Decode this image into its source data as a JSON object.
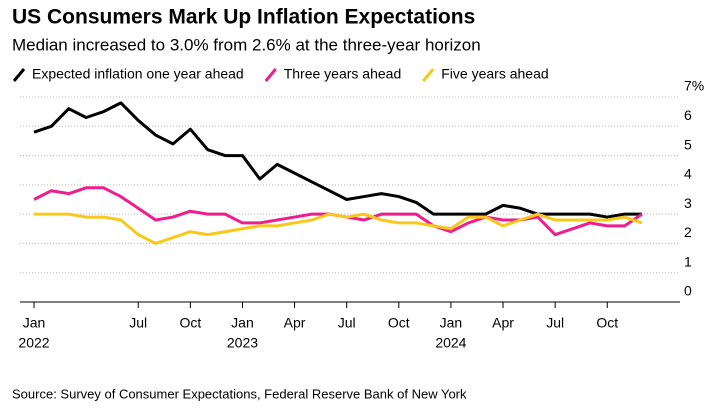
{
  "chart_data": {
    "type": "line",
    "title": "US Consumers Mark Up Inflation Expectations",
    "subtitle": "Median increased to 3.0% from 2.6% at the three-year horizon",
    "source": "Source: Survey of Consumer Expectations, Federal Reserve Bank of New York",
    "categories": [
      "Jan",
      null,
      null,
      null,
      null,
      null,
      "Jul",
      null,
      null,
      "Oct",
      null,
      null,
      "Jan",
      null,
      null,
      "Apr",
      null,
      null,
      "Jul",
      null,
      null,
      "Oct",
      null,
      null,
      "Jan",
      null,
      null,
      "Apr",
      null,
      null,
      "Jul",
      null,
      null,
      "Oct",
      null,
      null
    ],
    "year_labels": [
      "2022",
      "2023",
      "2024"
    ],
    "series": [
      {
        "name": "Expected inflation one year ahead",
        "color": "#000000",
        "values": [
          5.8,
          6.0,
          6.6,
          6.3,
          6.5,
          6.8,
          6.2,
          5.7,
          5.4,
          5.9,
          5.2,
          5.0,
          5.0,
          4.2,
          4.7,
          4.4,
          4.1,
          3.8,
          3.5,
          3.6,
          3.7,
          3.6,
          3.4,
          3.0,
          3.0,
          3.0,
          3.0,
          3.3,
          3.2,
          3.0,
          3.0,
          3.0,
          3.0,
          2.9,
          3.0,
          3.0
        ]
      },
      {
        "name": "Three years ahead",
        "color": "#ee1f8c",
        "values": [
          3.5,
          3.8,
          3.7,
          3.9,
          3.9,
          3.6,
          3.2,
          2.8,
          2.9,
          3.1,
          3.0,
          3.0,
          2.7,
          2.7,
          2.8,
          2.9,
          3.0,
          3.0,
          2.9,
          2.8,
          3.0,
          3.0,
          3.0,
          2.6,
          2.4,
          2.7,
          2.9,
          2.8,
          2.8,
          2.9,
          2.3,
          2.5,
          2.7,
          2.6,
          2.6,
          3.0
        ]
      },
      {
        "name": "Five years ahead",
        "color": "#f8c81a",
        "values": [
          3.0,
          3.0,
          3.0,
          2.9,
          2.9,
          2.8,
          2.3,
          2.0,
          2.2,
          2.4,
          2.3,
          2.4,
          2.5,
          2.6,
          2.6,
          2.7,
          2.8,
          3.0,
          2.9,
          3.0,
          2.8,
          2.7,
          2.7,
          2.6,
          2.5,
          2.9,
          2.9,
          2.6,
          2.8,
          3.0,
          2.8,
          2.8,
          2.8,
          2.8,
          2.9,
          2.7
        ]
      }
    ],
    "ylim": [
      0,
      7
    ],
    "yticks": [
      0,
      1,
      2,
      3,
      4,
      5,
      6,
      {
        "value": 7,
        "label": "7%"
      }
    ],
    "grid": true
  }
}
